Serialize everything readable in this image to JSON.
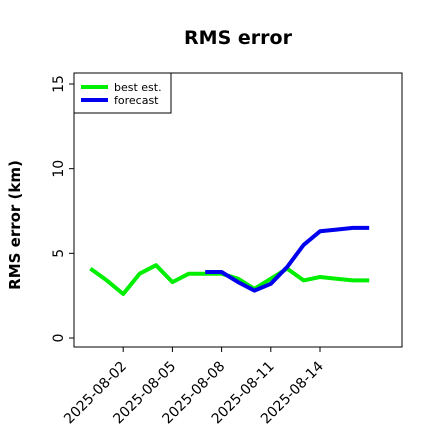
{
  "chart_data": {
    "type": "line",
    "title": "RMS error",
    "xlabel": "",
    "ylabel": "RMS error (km)",
    "ylim": [
      0,
      15
    ],
    "yticks": [
      "0",
      "5",
      "10",
      "15"
    ],
    "xticks": [
      "2025-08-02",
      "2025-08-05",
      "2025-08-08",
      "2025-08-11",
      "2025-08-14"
    ],
    "xlim": [
      "2025-07-30",
      "2025-08-19"
    ],
    "grid": false,
    "legend_position": "top-left",
    "series": [
      {
        "name": "best est.",
        "color": "#00ee00",
        "x": [
          "2025-07-31",
          "2025-08-01",
          "2025-08-02",
          "2025-08-03",
          "2025-08-04",
          "2025-08-05",
          "2025-08-06",
          "2025-08-07",
          "2025-08-08",
          "2025-08-09",
          "2025-08-10",
          "2025-08-11",
          "2025-08-12",
          "2025-08-13",
          "2025-08-14",
          "2025-08-15",
          "2025-08-16",
          "2025-08-17"
        ],
        "y": [
          4.1,
          3.4,
          2.6,
          3.8,
          4.3,
          3.3,
          3.8,
          3.8,
          3.8,
          3.5,
          2.9,
          3.5,
          4.1,
          3.4,
          3.6,
          3.5,
          3.4,
          3.4
        ]
      },
      {
        "name": "forecast",
        "color": "#0000ee",
        "x": [
          "2025-08-07",
          "2025-08-08",
          "2025-08-09",
          "2025-08-10",
          "2025-08-11",
          "2025-08-12",
          "2025-08-13",
          "2025-08-14",
          "2025-08-15",
          "2025-08-16",
          "2025-08-17"
        ],
        "y": [
          3.9,
          3.9,
          3.3,
          2.8,
          3.2,
          4.2,
          5.5,
          6.3,
          6.4,
          6.5,
          6.5
        ]
      }
    ]
  }
}
